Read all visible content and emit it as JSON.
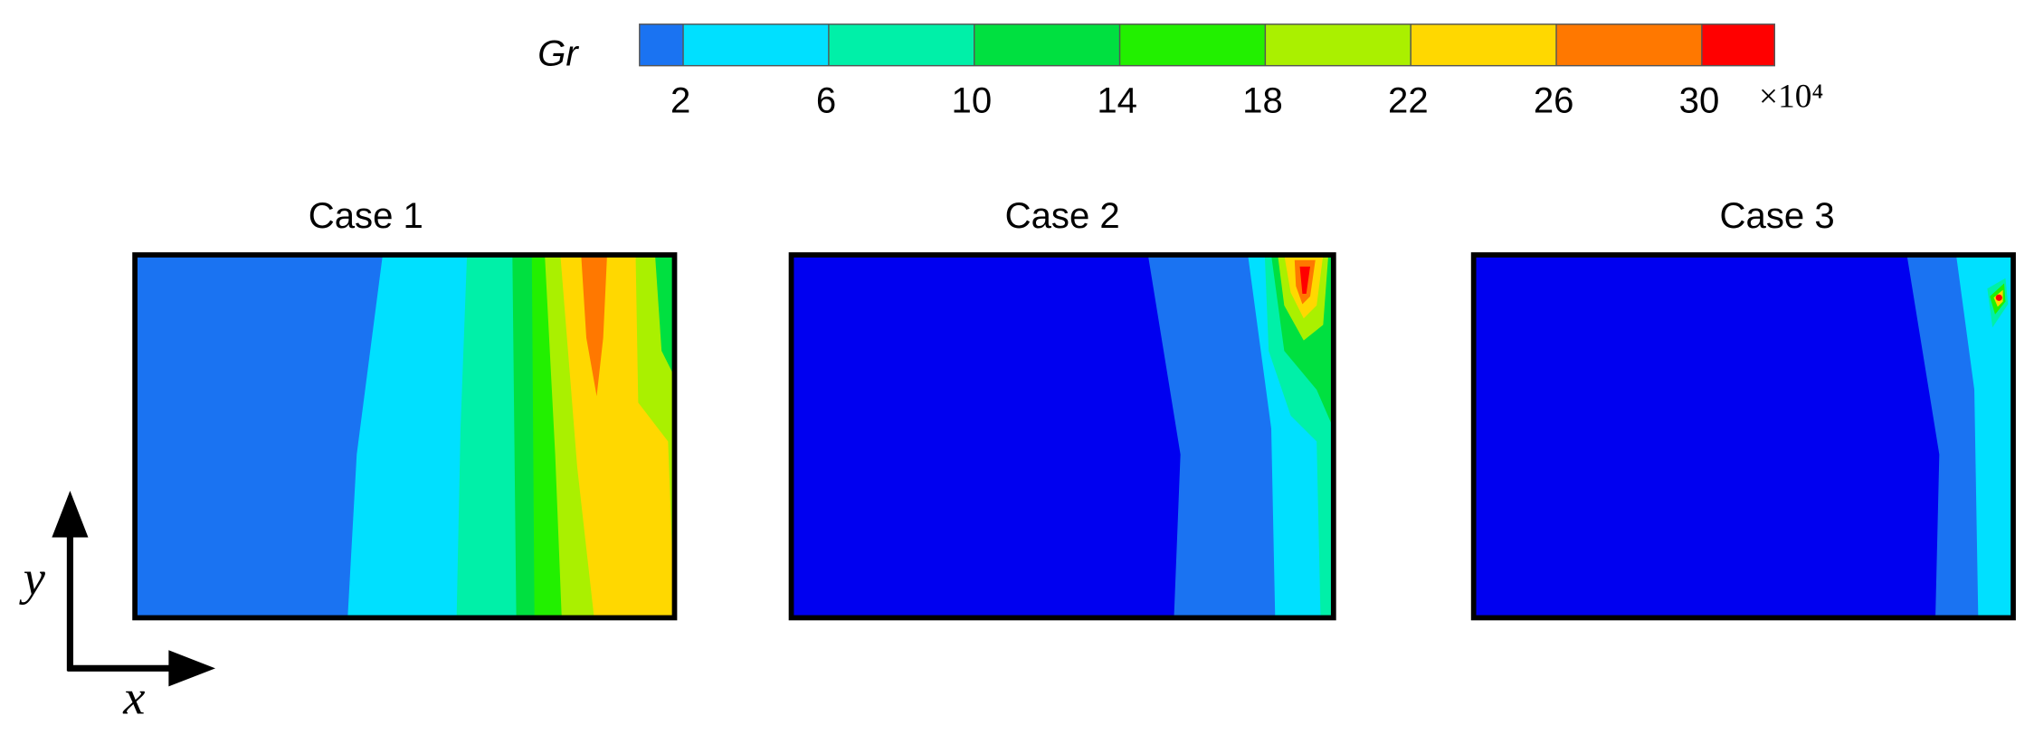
{
  "colorbar": {
    "label": "Gr",
    "multiplier": "×10⁴",
    "lim": [
      0.8,
      32
    ],
    "ticks": [
      2,
      6,
      10,
      14,
      18,
      22,
      26,
      30
    ],
    "colors": [
      "#1a73f2",
      "#00e0ff",
      "#00f0a8",
      "#00e040",
      "#22f000",
      "#aaf000",
      "#ffd800",
      "#ff7800",
      "#ff0000"
    ]
  },
  "panels": [
    {
      "title": "Case 1"
    },
    {
      "title": "Case 2"
    },
    {
      "title": "Case 3"
    }
  ],
  "axes": {
    "x": "x",
    "y": "y"
  }
}
